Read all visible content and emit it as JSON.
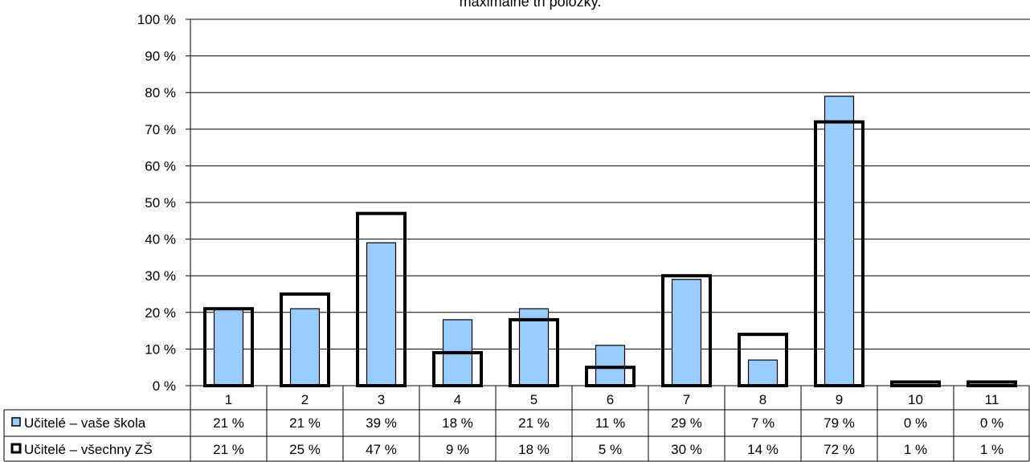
{
  "chart_data": {
    "type": "bar",
    "title": "maximálně tři položky.",
    "categories": [
      "1",
      "2",
      "3",
      "4",
      "5",
      "6",
      "7",
      "8",
      "9",
      "10",
      "11"
    ],
    "series": [
      {
        "name": "Učitelé – vaše škola",
        "values": [
          21,
          21,
          39,
          18,
          21,
          11,
          29,
          7,
          79,
          0,
          0
        ],
        "labels": [
          "21 %",
          "21 %",
          "39 %",
          "18 %",
          "21 %",
          "11 %",
          "29 %",
          "7 %",
          "79 %",
          "0 %",
          "0 %"
        ],
        "color": "#99ccff",
        "style": "filled-bar"
      },
      {
        "name": "Učitelé – všechny ZŠ",
        "values": [
          21,
          25,
          47,
          9,
          18,
          5,
          30,
          14,
          72,
          1,
          1
        ],
        "labels": [
          "21 %",
          "25 %",
          "47 %",
          "9 %",
          "18 %",
          "5 %",
          "30 %",
          "14 %",
          "72 %",
          "1 %",
          "1 %"
        ],
        "color": "#000000",
        "style": "outline-bar"
      }
    ],
    "ylim": [
      0,
      100
    ],
    "yticks": [
      0,
      10,
      20,
      30,
      40,
      50,
      60,
      70,
      80,
      90,
      100
    ],
    "ytick_labels": [
      "0 %",
      "10 %",
      "20 %",
      "30 %",
      "40 %",
      "50 %",
      "60 %",
      "70 %",
      "80 %",
      "90 %",
      "100 %"
    ],
    "grid": true,
    "legend": "data-table-below"
  }
}
